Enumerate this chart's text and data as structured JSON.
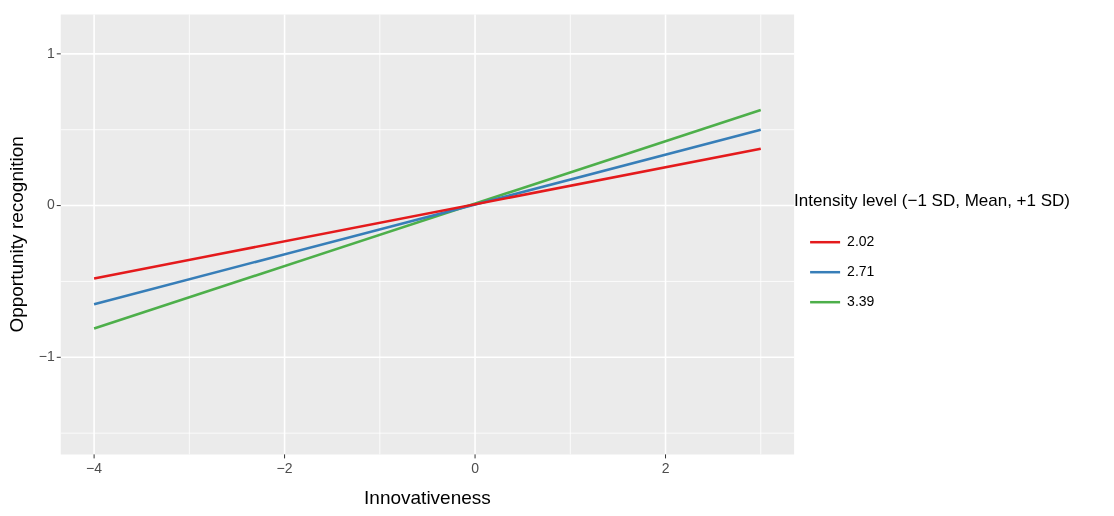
{
  "chart_data": {
    "type": "line",
    "xlabel": "Innovativeness",
    "ylabel": "Opportunity recognition",
    "legend_title": "Intensity level (−1 SD, Mean, +1 SD)",
    "x": [
      -4,
      3
    ],
    "series": [
      {
        "name": "2.02",
        "color": "#e41a1c",
        "values": [
          -0.48,
          0.375
        ]
      },
      {
        "name": "2.71",
        "color": "#377eb8",
        "values": [
          -0.65,
          0.5
        ]
      },
      {
        "name": "3.39",
        "color": "#4daf4a",
        "values": [
          -0.81,
          0.63
        ]
      }
    ],
    "xlim": [
      -4.35,
      3.35
    ],
    "xticks": [
      {
        "value": -4,
        "label": "−4"
      },
      {
        "value": -3,
        "label": null
      },
      {
        "value": -2,
        "label": "−2"
      },
      {
        "value": -1,
        "label": null
      },
      0,
      {
        "value": 1,
        "label": null
      },
      2,
      {
        "value": 3,
        "label": null
      }
    ],
    "ylim": [
      -1.64,
      1.26
    ],
    "yticks": [
      {
        "value": -1.5,
        "label": null
      },
      {
        "value": -1,
        "label": "−1"
      },
      {
        "value": -0.5,
        "label": null
      },
      0,
      {
        "value": 0.5,
        "label": null
      },
      1
    ],
    "grid": true,
    "legend": "right",
    "marker": "none",
    "line_style": "solid"
  }
}
